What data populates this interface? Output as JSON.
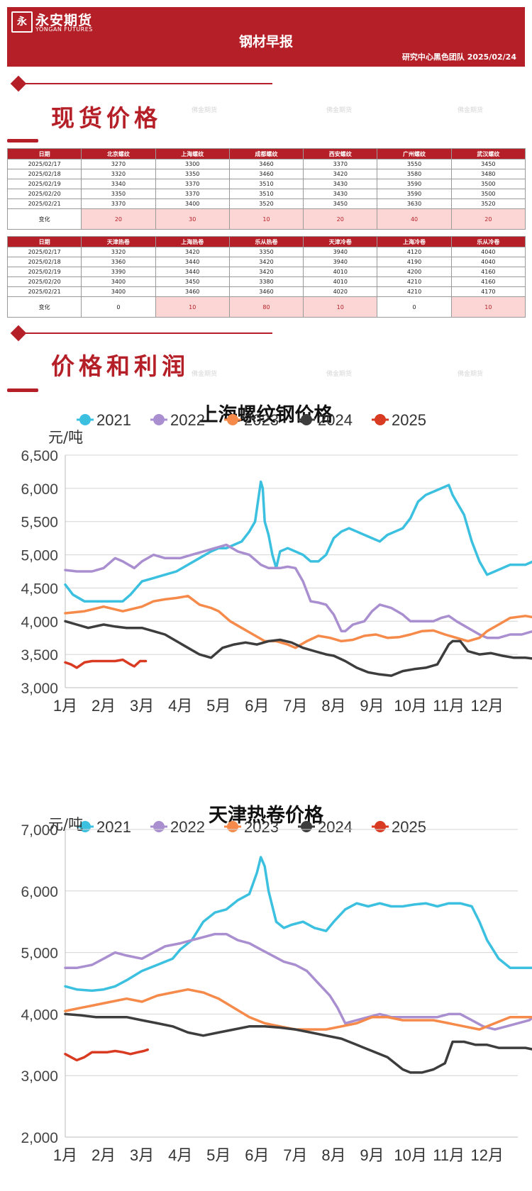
{
  "header": {
    "logo_mark": "永",
    "logo_cn": "永安期货",
    "logo_en": "YONGAN FUTURES",
    "title": "钢材早报",
    "subtitle": "研究中心黑色团队  2025/02/24"
  },
  "sections": {
    "spot": "现货价格",
    "profit": "价格和利润"
  },
  "watermark": "佛金期货",
  "table1": {
    "headers": [
      "日期",
      "北京螺纹",
      "上海螺纹",
      "成都螺纹",
      "西安螺纹",
      "广州螺纹",
      "武汉螺纹"
    ],
    "rows": [
      [
        "2025/02/17",
        "3270",
        "3300",
        "3460",
        "3370",
        "3550",
        "3450"
      ],
      [
        "2025/02/18",
        "3320",
        "3350",
        "3460",
        "3420",
        "3580",
        "3480"
      ],
      [
        "2025/02/19",
        "3340",
        "3370",
        "3510",
        "3430",
        "3590",
        "3500"
      ],
      [
        "2025/02/20",
        "3350",
        "3370",
        "3510",
        "3430",
        "3590",
        "3500"
      ],
      [
        "2025/02/21",
        "3370",
        "3400",
        "3520",
        "3450",
        "3630",
        "3520"
      ]
    ],
    "change": [
      "变化",
      "20",
      "30",
      "10",
      "20",
      "40",
      "20"
    ]
  },
  "table2": {
    "headers": [
      "日期",
      "天津热卷",
      "上海热卷",
      "乐从热卷",
      "天津冷卷",
      "上海冷卷",
      "乐从冷卷"
    ],
    "rows": [
      [
        "2025/02/17",
        "3320",
        "3420",
        "3350",
        "3940",
        "4120",
        "4040"
      ],
      [
        "2025/02/18",
        "3360",
        "3440",
        "3420",
        "3940",
        "4190",
        "4040"
      ],
      [
        "2025/02/19",
        "3390",
        "3440",
        "3420",
        "4010",
        "4200",
        "4160"
      ],
      [
        "2025/02/20",
        "3400",
        "3450",
        "3380",
        "4010",
        "4210",
        "4160"
      ],
      [
        "2025/02/21",
        "3400",
        "3460",
        "3460",
        "4020",
        "4210",
        "4170"
      ]
    ],
    "change": [
      "变化",
      "0",
      "10",
      "80",
      "10",
      "0",
      "10"
    ]
  },
  "colors": {
    "brand": "#b51f27",
    "positive_fill": "#fcd5d5",
    "s2021": "#3cc0e0",
    "s2022": "#a98fd0",
    "s2023": "#f58a4a",
    "s2024": "#3d3d3d",
    "s2025": "#d83a22"
  },
  "chart_data": [
    {
      "type": "line",
      "title": "上海螺纹钢价格",
      "ylabel": "元/吨",
      "ylim": [
        3000,
        6500
      ],
      "yticks": [
        "3,000",
        "3,500",
        "4,000",
        "4,500",
        "5,000",
        "5,500",
        "6,000",
        "6,500"
      ],
      "categories": [
        "1月",
        "2月",
        "3月",
        "4月",
        "5月",
        "6月",
        "7月",
        "8月",
        "9月",
        "10月",
        "11月",
        "12月"
      ],
      "legend_position": "top",
      "series": [
        {
          "name": "2021",
          "x": [
            0,
            0.2,
            0.5,
            0.8,
            1,
            1.5,
            1.7,
            2,
            2.3,
            2.6,
            2.9,
            3.2,
            3.5,
            3.8,
            4,
            4.2,
            4.4,
            4.6,
            4.8,
            4.95,
            5.05,
            5.1,
            5.15,
            5.2,
            5.3,
            5.4,
            5.5,
            5.6,
            5.8,
            6,
            6.2,
            6.4,
            6.6,
            6.8,
            7,
            7.2,
            7.4,
            7.6,
            7.8,
            8,
            8.2,
            8.4,
            8.6,
            8.8,
            9,
            9.2,
            9.4,
            9.6,
            9.8,
            10,
            10.1,
            10.2,
            10.4,
            10.6,
            10.8,
            11,
            11.2,
            11.4,
            11.6,
            11.8,
            12,
            12.2,
            12.4,
            12.6,
            12.8
          ],
          "y": [
            4550,
            4400,
            4300,
            4300,
            4300,
            4300,
            4400,
            4600,
            4650,
            4700,
            4750,
            4850,
            4950,
            5050,
            5100,
            5100,
            5150,
            5200,
            5350,
            5500,
            5900,
            6100,
            6000,
            5500,
            5300,
            5000,
            4800,
            5050,
            5100,
            5050,
            5000,
            4900,
            4900,
            5000,
            5250,
            5350,
            5400,
            5350,
            5300,
            5250,
            5200,
            5300,
            5350,
            5400,
            5550,
            5800,
            5900,
            5950,
            6000,
            6050,
            5900,
            5800,
            5600,
            5200,
            4900,
            4700,
            4750,
            4800,
            4850,
            4850,
            4850,
            4900,
            4900,
            4850,
            4750
          ]
        },
        {
          "name": "2022",
          "x": [
            0,
            0.3,
            0.7,
            1,
            1.3,
            1.5,
            1.8,
            2,
            2.3,
            2.6,
            3,
            3.3,
            3.6,
            3.9,
            4.2,
            4.5,
            4.8,
            5.1,
            5.3,
            5.6,
            5.8,
            6,
            6.2,
            6.4,
            6.6,
            6.8,
            7,
            7.2,
            7.3,
            7.5,
            7.8,
            8,
            8.2,
            8.5,
            8.8,
            9,
            9.3,
            9.6,
            9.8,
            10,
            10.2,
            10.5,
            10.8,
            11,
            11.3,
            11.6,
            11.9,
            12.2,
            12.5,
            12.8
          ],
          "y": [
            4770,
            4750,
            4750,
            4800,
            4950,
            4900,
            4800,
            4900,
            5000,
            4950,
            4950,
            5000,
            5050,
            5100,
            5150,
            5050,
            5000,
            4850,
            4800,
            4800,
            4820,
            4800,
            4600,
            4300,
            4280,
            4250,
            4100,
            3850,
            3850,
            3950,
            4000,
            4150,
            4250,
            4200,
            4100,
            4000,
            4000,
            4000,
            4050,
            4080,
            4000,
            3900,
            3800,
            3750,
            3750,
            3800,
            3800,
            3850,
            3950,
            4050
          ]
        },
        {
          "name": "2023",
          "x": [
            0,
            0.5,
            1,
            1.5,
            2,
            2.3,
            2.6,
            2.9,
            3.2,
            3.5,
            3.8,
            4,
            4.3,
            4.6,
            4.9,
            5.2,
            5.5,
            5.8,
            6,
            6.3,
            6.6,
            6.9,
            7.2,
            7.5,
            7.8,
            8.1,
            8.4,
            8.7,
            9,
            9.3,
            9.6,
            9.9,
            10.2,
            10.5,
            10.8,
            11,
            11.3,
            11.6,
            12,
            12.3,
            12.6,
            12.8
          ],
          "y": [
            4120,
            4150,
            4220,
            4150,
            4220,
            4300,
            4330,
            4350,
            4380,
            4250,
            4200,
            4150,
            4000,
            3900,
            3800,
            3700,
            3700,
            3650,
            3600,
            3700,
            3780,
            3750,
            3700,
            3720,
            3780,
            3800,
            3750,
            3760,
            3800,
            3850,
            3860,
            3800,
            3750,
            3700,
            3750,
            3850,
            3950,
            4050,
            4080,
            4050,
            4000,
            4000
          ]
        },
        {
          "name": "2024",
          "x": [
            0,
            0.3,
            0.6,
            1,
            1.3,
            1.6,
            2,
            2.3,
            2.6,
            2.9,
            3.2,
            3.5,
            3.8,
            4.1,
            4.4,
            4.7,
            5,
            5.3,
            5.6,
            5.9,
            6.2,
            6.5,
            6.8,
            7,
            7.3,
            7.6,
            7.9,
            8.2,
            8.5,
            8.8,
            9.1,
            9.4,
            9.7,
            10,
            10.1,
            10.3,
            10.5,
            10.8,
            11.1,
            11.4,
            11.7,
            12,
            12.3,
            12.6,
            12.8
          ],
          "y": [
            4000,
            3950,
            3900,
            3950,
            3920,
            3900,
            3900,
            3850,
            3800,
            3700,
            3600,
            3500,
            3450,
            3600,
            3650,
            3680,
            3650,
            3700,
            3720,
            3680,
            3600,
            3550,
            3500,
            3480,
            3400,
            3300,
            3230,
            3200,
            3180,
            3250,
            3280,
            3300,
            3350,
            3650,
            3700,
            3700,
            3550,
            3500,
            3520,
            3480,
            3450,
            3450,
            3430,
            3400,
            3400
          ]
        },
        {
          "name": "2025",
          "x": [
            0,
            0.15,
            0.3,
            0.5,
            0.7,
            0.9,
            1.1,
            1.3,
            1.5,
            1.7,
            1.8,
            1.95,
            2.1
          ],
          "y": [
            3380,
            3350,
            3300,
            3380,
            3400,
            3400,
            3400,
            3400,
            3420,
            3350,
            3320,
            3400,
            3400
          ]
        }
      ]
    },
    {
      "type": "line",
      "title": "天津热卷价格",
      "ylabel": "元/吨",
      "ylim": [
        2000,
        7000
      ],
      "yticks": [
        "2,000",
        "3,000",
        "4,000",
        "5,000",
        "6,000",
        "7,000"
      ],
      "categories": [
        "1月",
        "2月",
        "3月",
        "4月",
        "5月",
        "6月",
        "7月",
        "8月",
        "9月",
        "10月",
        "11月",
        "12月"
      ],
      "legend_position": "top",
      "series": [
        {
          "name": "2021",
          "x": [
            0,
            0.3,
            0.7,
            1,
            1.3,
            1.6,
            2,
            2.4,
            2.8,
            3,
            3.3,
            3.6,
            3.9,
            4.2,
            4.5,
            4.8,
            5,
            5.1,
            5.2,
            5.3,
            5.5,
            5.7,
            5.9,
            6.2,
            6.5,
            6.8,
            7,
            7.3,
            7.6,
            7.9,
            8.2,
            8.5,
            8.8,
            9.1,
            9.4,
            9.7,
            10,
            10.3,
            10.6,
            10.8,
            11,
            11.3,
            11.6,
            12,
            12.3,
            12.6,
            12.8
          ],
          "y": [
            4450,
            4400,
            4380,
            4400,
            4450,
            4550,
            4700,
            4800,
            4900,
            5050,
            5200,
            5500,
            5650,
            5700,
            5850,
            5950,
            6300,
            6550,
            6400,
            6000,
            5500,
            5400,
            5450,
            5500,
            5400,
            5350,
            5500,
            5700,
            5800,
            5750,
            5800,
            5750,
            5750,
            5780,
            5800,
            5750,
            5800,
            5800,
            5750,
            5500,
            5200,
            4900,
            4750,
            4750,
            4750,
            4800,
            4700
          ]
        },
        {
          "name": "2022",
          "x": [
            0,
            0.3,
            0.7,
            1,
            1.3,
            1.6,
            2,
            2.3,
            2.6,
            3,
            3.3,
            3.6,
            3.9,
            4.2,
            4.5,
            4.8,
            5.1,
            5.4,
            5.7,
            6,
            6.3,
            6.6,
            6.9,
            7.1,
            7.3,
            7.6,
            7.9,
            8.2,
            8.5,
            8.8,
            9.1,
            9.4,
            9.7,
            10,
            10.3,
            10.6,
            10.9,
            11.2,
            11.5,
            11.8,
            12.1,
            12.4,
            12.8
          ],
          "y": [
            4750,
            4750,
            4800,
            4900,
            5000,
            4950,
            4900,
            5000,
            5100,
            5150,
            5200,
            5250,
            5300,
            5300,
            5200,
            5150,
            5050,
            4950,
            4850,
            4800,
            4700,
            4500,
            4300,
            4100,
            3850,
            3900,
            3950,
            4000,
            3950,
            3950,
            3950,
            3950,
            3950,
            4000,
            4000,
            3900,
            3800,
            3750,
            3800,
            3850,
            3900,
            4050,
            4000
          ]
        },
        {
          "name": "2023",
          "x": [
            0,
            0.4,
            0.8,
            1.2,
            1.6,
            2,
            2.4,
            2.8,
            3.2,
            3.6,
            4,
            4.4,
            4.8,
            5.2,
            5.6,
            6,
            6.4,
            6.8,
            7.2,
            7.6,
            8,
            8.4,
            8.8,
            9.2,
            9.6,
            10,
            10.4,
            10.8,
            11.2,
            11.6,
            12,
            12.4,
            12.8
          ],
          "y": [
            4050,
            4100,
            4150,
            4200,
            4250,
            4200,
            4300,
            4350,
            4400,
            4350,
            4250,
            4100,
            3950,
            3850,
            3800,
            3750,
            3750,
            3750,
            3800,
            3850,
            3950,
            3950,
            3900,
            3900,
            3900,
            3850,
            3800,
            3750,
            3850,
            3950,
            3950,
            3950,
            4000
          ]
        },
        {
          "name": "2024",
          "x": [
            0,
            0.4,
            0.8,
            1.2,
            1.6,
            2,
            2.4,
            2.8,
            3.2,
            3.6,
            4,
            4.4,
            4.8,
            5.2,
            5.6,
            6,
            6.4,
            6.8,
            7.2,
            7.6,
            8,
            8.4,
            8.8,
            9,
            9.3,
            9.6,
            9.9,
            10.1,
            10.4,
            10.7,
            11,
            11.3,
            11.6,
            12,
            12.4,
            12.8
          ],
          "y": [
            4000,
            3980,
            3950,
            3950,
            3950,
            3900,
            3850,
            3800,
            3700,
            3650,
            3700,
            3750,
            3800,
            3800,
            3780,
            3750,
            3700,
            3650,
            3600,
            3500,
            3400,
            3300,
            3100,
            3050,
            3050,
            3100,
            3200,
            3550,
            3550,
            3500,
            3500,
            3450,
            3450,
            3450,
            3400,
            3400
          ]
        },
        {
          "name": "2025",
          "x": [
            0,
            0.15,
            0.3,
            0.5,
            0.7,
            0.9,
            1.1,
            1.3,
            1.5,
            1.7,
            1.9,
            2.05,
            2.15
          ],
          "y": [
            3350,
            3300,
            3250,
            3300,
            3380,
            3380,
            3380,
            3400,
            3380,
            3350,
            3380,
            3400,
            3420
          ]
        }
      ]
    }
  ]
}
